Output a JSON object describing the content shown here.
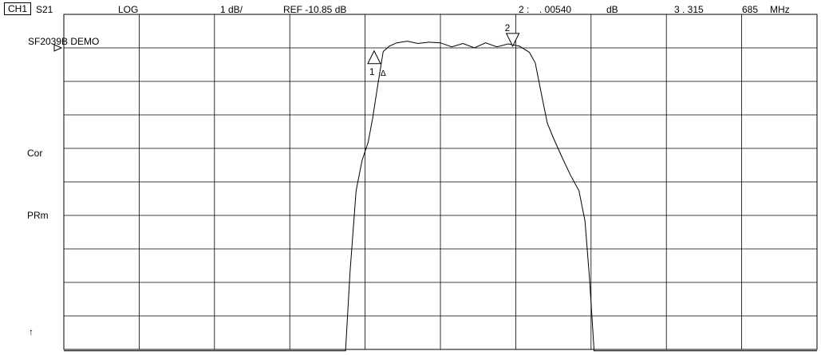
{
  "header": {
    "channel": "CH1",
    "param": "S21",
    "format": "LOG",
    "scale": "1 dB/",
    "ref": "REF -10.85 dB",
    "marker_label": "2 :",
    "marker_value": ". 00540",
    "marker_unit": "dB",
    "marker_freq_a": "3 . 315",
    "marker_freq_b": "685",
    "marker_freq_unit": "MHz"
  },
  "side": {
    "title": "SF2039B DEMO",
    "cor": "Cor",
    "prm": "PRm",
    "arrow": "↑"
  },
  "chart_data": {
    "type": "line",
    "title": "",
    "xlabel": "",
    "ylabel": "",
    "grid": true,
    "divisions_x": 10,
    "divisions_y": 10,
    "ylim": [
      -19.85,
      -9.85
    ],
    "xlim": [
      0,
      10
    ],
    "reference_level": -10.85,
    "series": [
      {
        "x": [
          0,
          3.74,
          3.8,
          3.88,
          3.96,
          4.04,
          4.1,
          4.17,
          4.24,
          4.32,
          4.42,
          4.56,
          4.7,
          4.85,
          5.0,
          5.15,
          5.3,
          5.45,
          5.6,
          5.75,
          5.9,
          6.05,
          6.18,
          6.26,
          6.34,
          6.42,
          6.5,
          6.6,
          6.72,
          6.84,
          6.92,
          6.98,
          7.04,
          7.12,
          7.2,
          7.28,
          10
        ],
        "values": [
          -19.89,
          -19.89,
          -17.55,
          -15.12,
          -14.21,
          -13.67,
          -12.96,
          -11.94,
          -10.96,
          -10.8,
          -10.7,
          -10.65,
          -10.72,
          -10.68,
          -10.7,
          -10.82,
          -10.72,
          -10.85,
          -10.7,
          -10.82,
          -10.73,
          -10.8,
          -10.98,
          -11.3,
          -12.22,
          -13.1,
          -13.54,
          -14.04,
          -14.62,
          -15.12,
          -16.02,
          -17.74,
          -19.89,
          -19.89,
          -19.89,
          -19.89,
          -19.89
        ]
      }
    ],
    "markers": [
      {
        "id": "1",
        "delta": true,
        "label": "1",
        "delta_symbol": "Δ",
        "x": 4.12,
        "y": -10.94,
        "orientation": "up"
      },
      {
        "id": "2",
        "delta": false,
        "label": "2",
        "x": 5.96,
        "y": -10.8,
        "orientation": "down"
      }
    ]
  }
}
